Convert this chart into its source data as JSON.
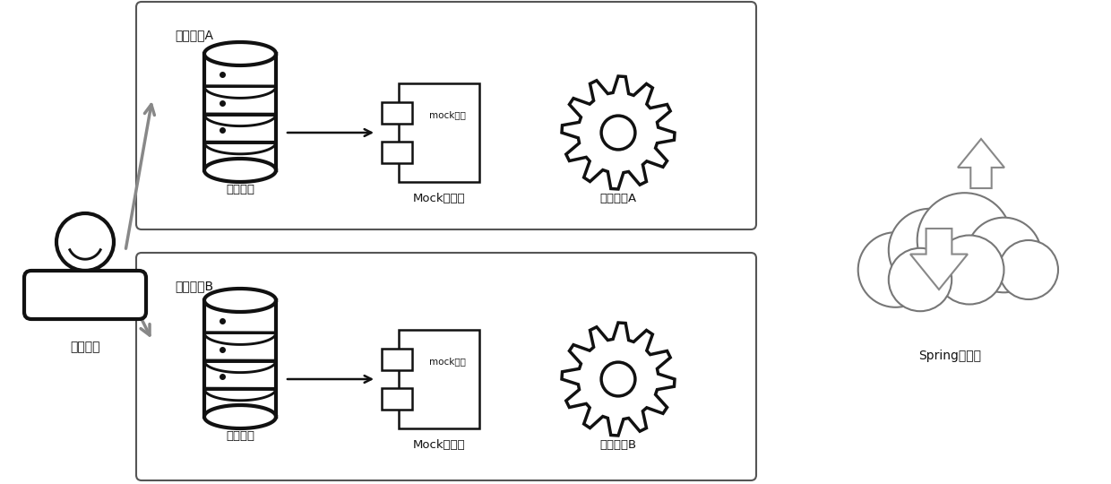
{
  "bg_color": "#ffffff",
  "box_A_label": "测试用例A",
  "box_B_label": "测试用例B",
  "person_label": "开发人员",
  "db_A_label": "测试数据",
  "mock_A_label": "Mock的服务",
  "flow_A_label": "测试流程A",
  "db_B_label": "测试数据",
  "mock_B_label": "Mock的服务",
  "flow_B_label": "测试流程B",
  "cloud_label": "Spring上下文",
  "mock_service_A": "mock服务",
  "mock_service_B": "mock服务",
  "icon_color": "#111111",
  "box_color": "#555555",
  "arrow_color": "#555555"
}
